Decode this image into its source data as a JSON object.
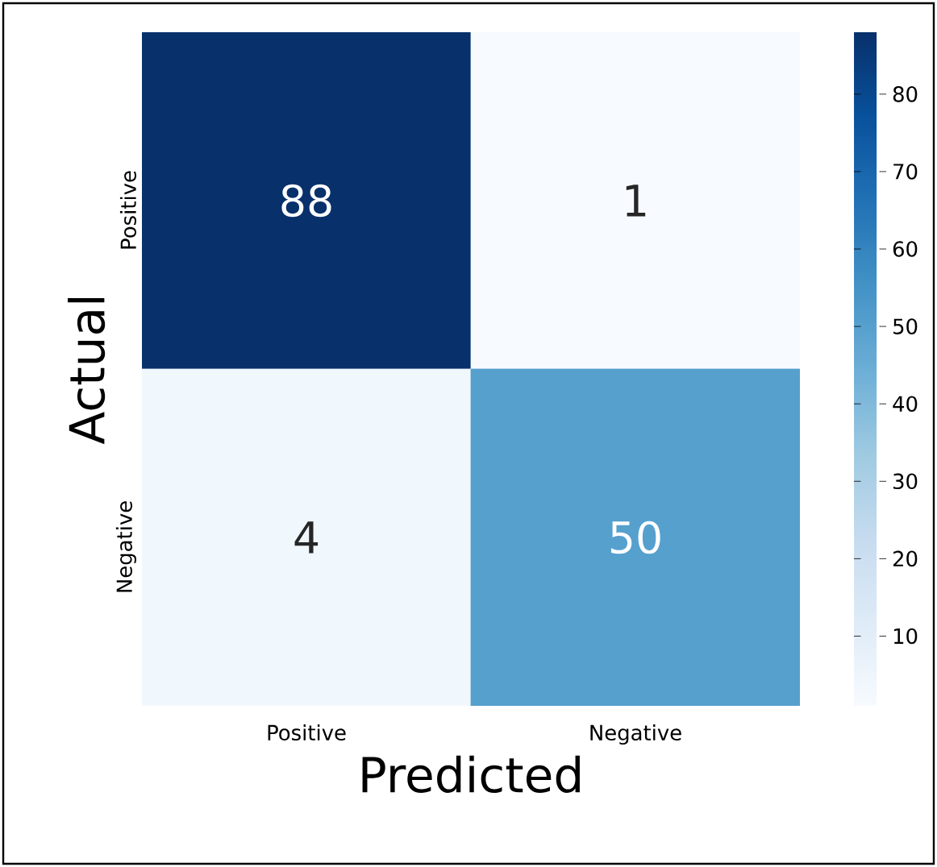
{
  "chart_data": {
    "type": "heatmap",
    "xlabel": "Predicted",
    "ylabel": "Actual",
    "categories": [
      "Positive",
      "Negative"
    ],
    "y_categories": [
      "Positive",
      "Negative"
    ],
    "cells": [
      [
        88,
        1
      ],
      [
        4,
        50
      ]
    ],
    "clim": [
      1,
      88
    ],
    "cticks": [
      10,
      20,
      30,
      40,
      50,
      60,
      70,
      80
    ],
    "data_labels": true
  }
}
